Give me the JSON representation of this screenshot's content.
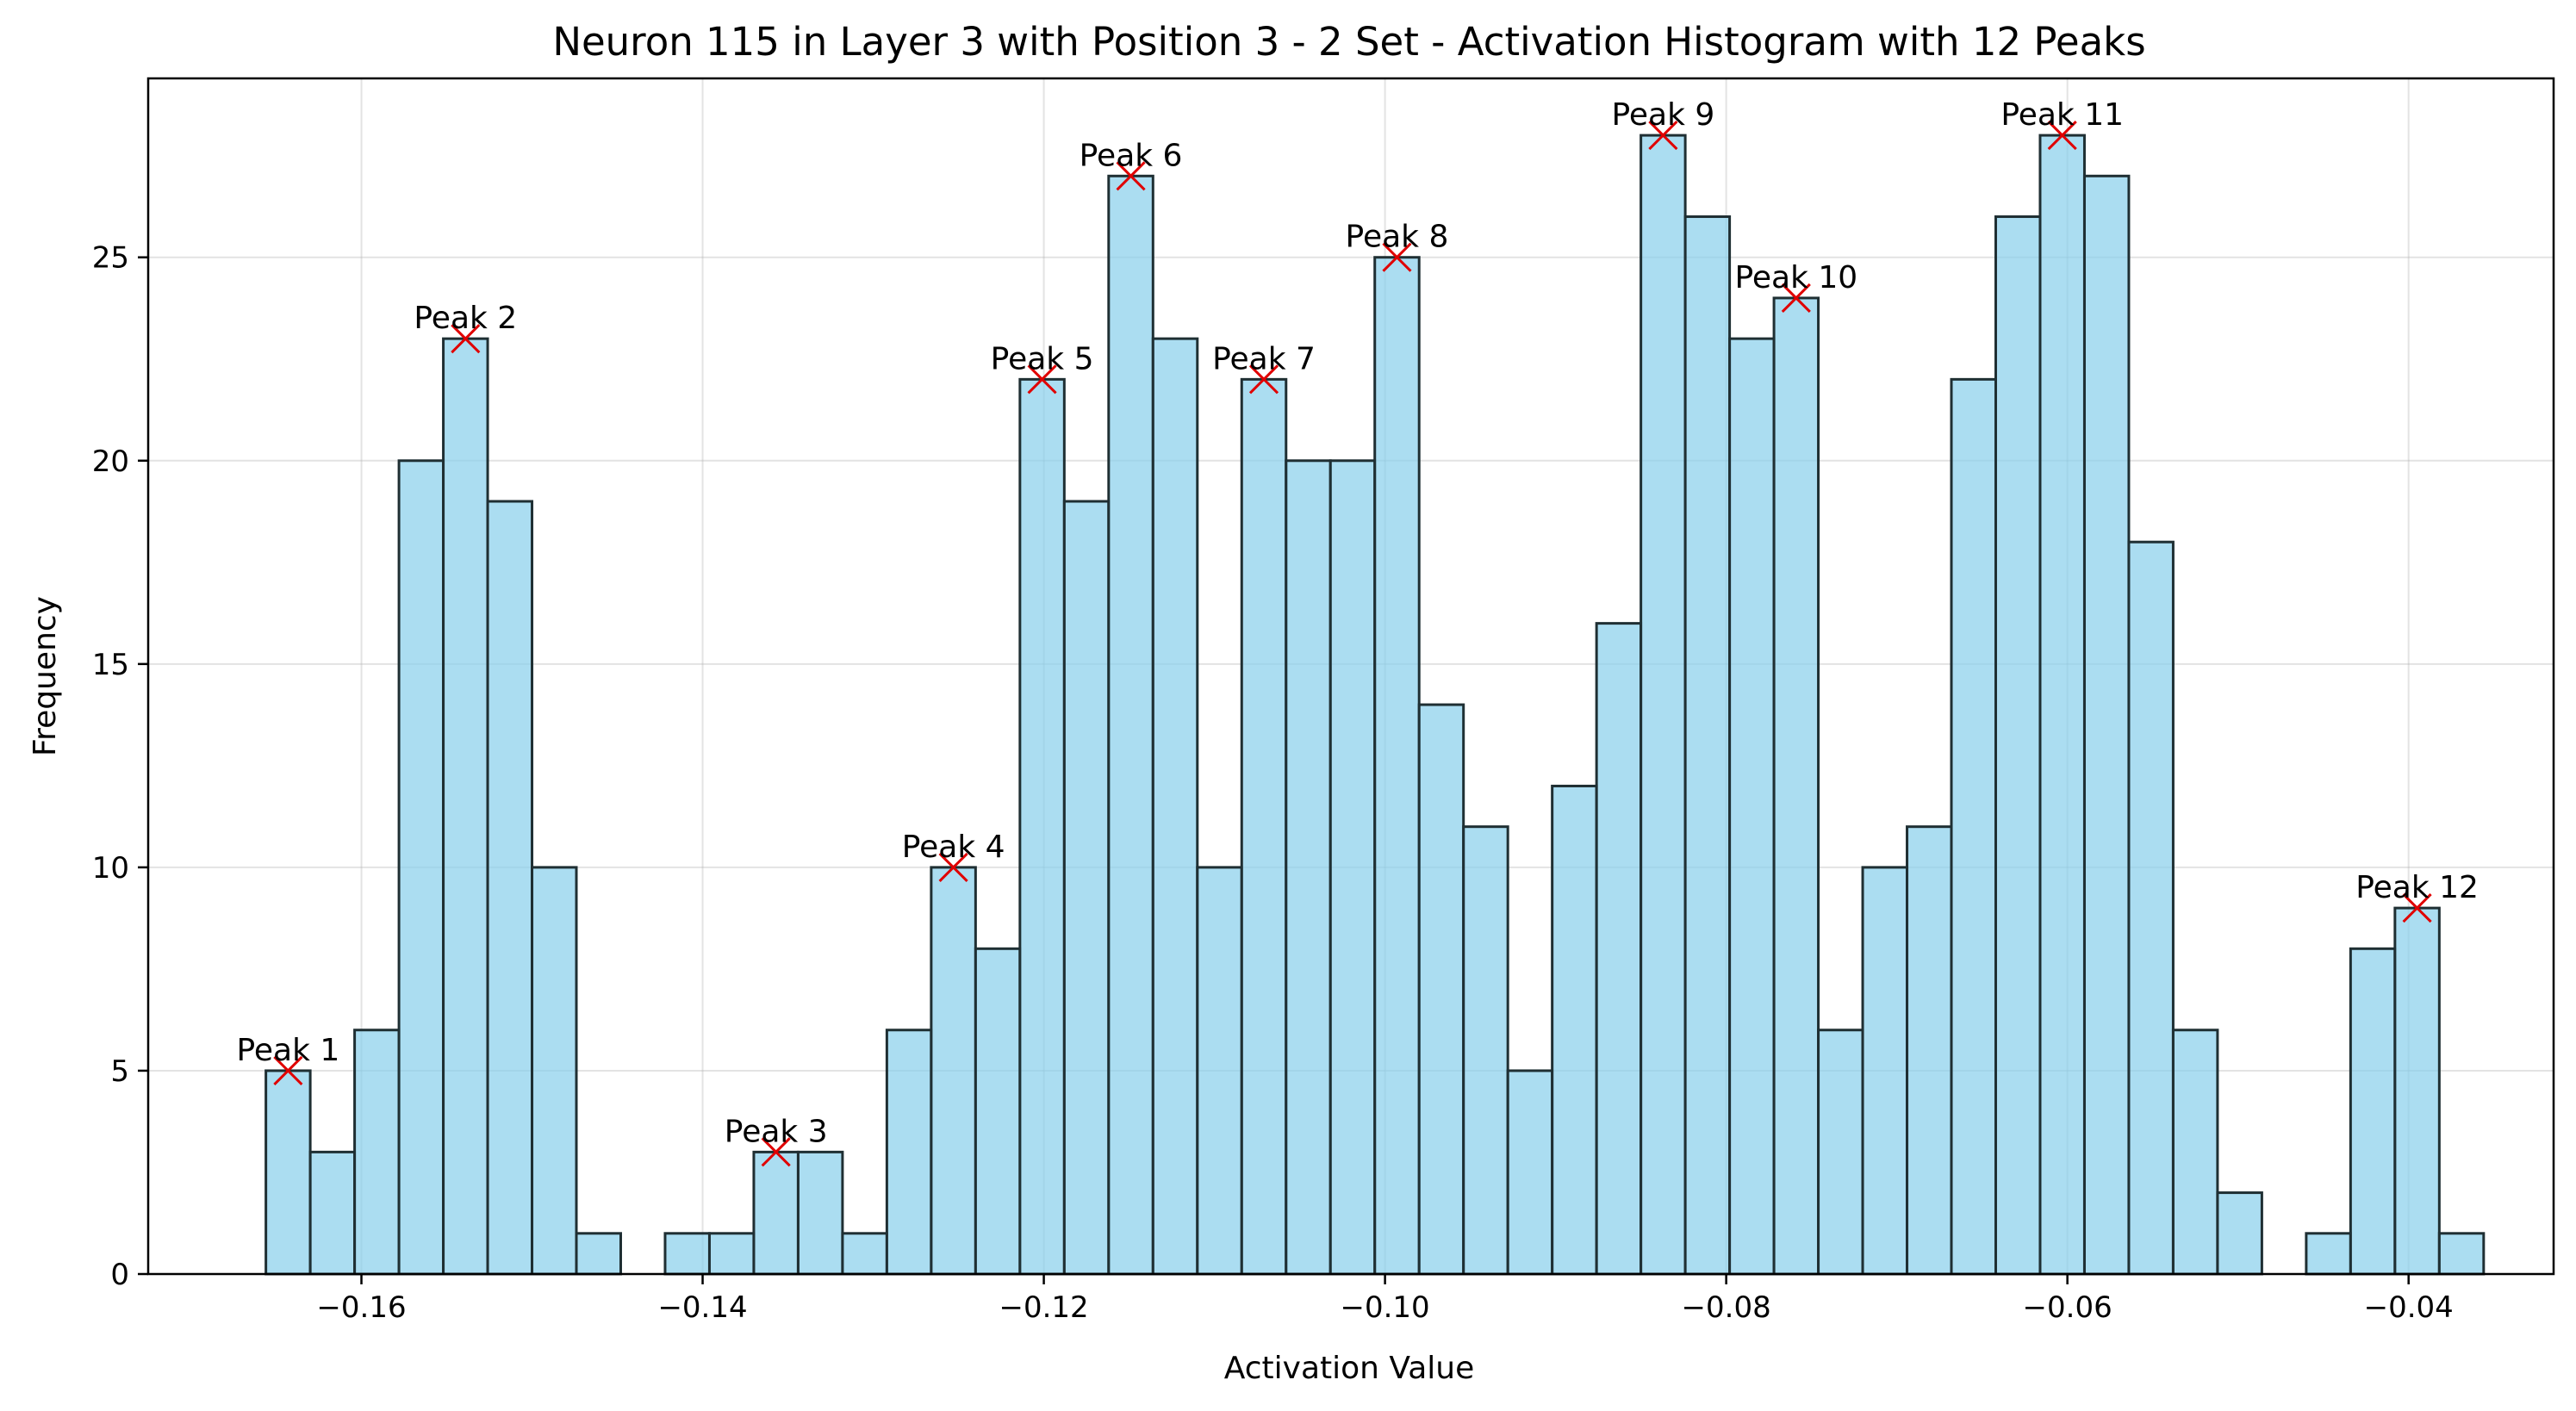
{
  "chart_data": {
    "type": "bar",
    "title": "Neuron 115 in Layer 3 with Position 3 - 2 Set - Activation Histogram with 12 Peaks",
    "xlabel": "Activation Value",
    "ylabel": "Frequency",
    "xlim": [
      -0.1725,
      -0.0315
    ],
    "ylim": [
      0,
      29.4
    ],
    "xticks": [
      -0.16,
      -0.14,
      -0.12,
      -0.1,
      -0.08,
      -0.06,
      -0.04
    ],
    "xtick_labels": [
      "−0.16",
      "−0.14",
      "−0.12",
      "−0.10",
      "−0.08",
      "−0.06",
      "−0.04"
    ],
    "yticks": [
      0,
      5,
      10,
      15,
      20,
      25
    ],
    "ytick_labels": [
      "0",
      "5",
      "10",
      "15",
      "20",
      "25"
    ],
    "grid": true,
    "colors": {
      "bar_fill": "#87ceeb",
      "bar_edge": "#1f2f33",
      "peak_marker": "#e00000"
    },
    "bin_start": -0.1656,
    "bin_width": 0.0026,
    "values": [
      5,
      3,
      6,
      20,
      23,
      19,
      10,
      1,
      0,
      1,
      1,
      3,
      3,
      1,
      6,
      10,
      8,
      22,
      19,
      27,
      23,
      10,
      22,
      20,
      20,
      25,
      14,
      11,
      5,
      12,
      16,
      28,
      26,
      23,
      24,
      6,
      10,
      11,
      22,
      26,
      28,
      27,
      18,
      6,
      2,
      0,
      1,
      8,
      9,
      1
    ],
    "peaks": [
      {
        "label": "Peak 1",
        "x": -0.1643,
        "y": 5
      },
      {
        "label": "Peak 2",
        "x": -0.1539,
        "y": 23
      },
      {
        "label": "Peak 3",
        "x": -0.1357,
        "y": 3
      },
      {
        "label": "Peak 4",
        "x": -0.1253,
        "y": 10
      },
      {
        "label": "Peak 5",
        "x": -0.1201,
        "y": 22
      },
      {
        "label": "Peak 6",
        "x": -0.1149,
        "y": 27
      },
      {
        "label": "Peak 7",
        "x": -0.1071,
        "y": 22
      },
      {
        "label": "Peak 8",
        "x": -0.0993,
        "y": 25
      },
      {
        "label": "Peak 9",
        "x": -0.0837,
        "y": 28
      },
      {
        "label": "Peak 10",
        "x": -0.0759,
        "y": 24
      },
      {
        "label": "Peak 11",
        "x": -0.0603,
        "y": 28
      },
      {
        "label": "Peak 12",
        "x": -0.0395,
        "y": 9
      }
    ]
  }
}
